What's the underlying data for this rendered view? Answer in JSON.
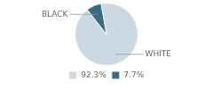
{
  "chart_data": {
    "type": "pie",
    "categories": [
      "92.3%",
      "7.7%"
    ],
    "values": [
      92.3,
      7.7
    ],
    "colors": [
      "#ccd8e2",
      "#3a6b85"
    ],
    "annotations": [
      "WHITE",
      "BLACK"
    ],
    "legend": "bottom"
  }
}
